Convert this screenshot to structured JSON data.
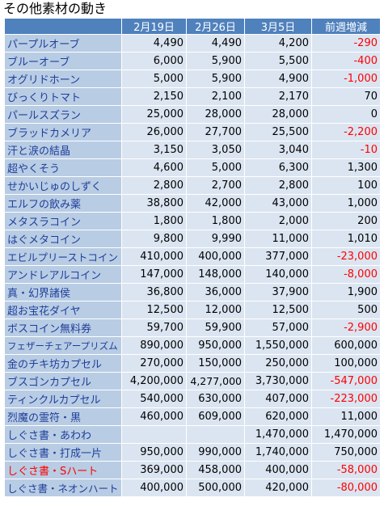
{
  "title": "その他素材の動き",
  "table": {
    "columns": [
      "2月19日",
      "2月26日",
      "3月5日",
      "前週増減"
    ],
    "name_color": "#1f3f9a",
    "negative_color": "#ff0000",
    "rows": [
      {
        "name": "パープルオーブ",
        "cells": [
          "4,490",
          "4,490",
          "4,200",
          "-290"
        ]
      },
      {
        "name": "ブルーオーブ",
        "cells": [
          "6,000",
          "5,900",
          "5,500",
          "-400"
        ]
      },
      {
        "name": "オグリドホーン",
        "cells": [
          "5,000",
          "5,900",
          "4,900",
          "-1,000"
        ]
      },
      {
        "name": "びっくりトマト",
        "cells": [
          "2,150",
          "2,100",
          "2,170",
          "70"
        ]
      },
      {
        "name": "パールスズラン",
        "cells": [
          "25,000",
          "28,000",
          "28,000",
          "0"
        ]
      },
      {
        "name": "ブラッドカメリア",
        "cells": [
          "26,000",
          "27,700",
          "25,500",
          "-2,200"
        ]
      },
      {
        "name": "汗と涙の結晶",
        "cells": [
          "3,150",
          "3,050",
          "3,040",
          "-10"
        ]
      },
      {
        "name": "超やくそう",
        "cells": [
          "4,600",
          "5,000",
          "6,300",
          "1,300"
        ]
      },
      {
        "name": "せかいじゅのしずく",
        "cells": [
          "2,800",
          "2,700",
          "2,800",
          "100"
        ]
      },
      {
        "name": "エルフの飲み薬",
        "cells": [
          "38,800",
          "42,000",
          "43,000",
          "1,000"
        ]
      },
      {
        "name": "メタスラコイン",
        "cells": [
          "1,800",
          "1,800",
          "2,000",
          "200"
        ]
      },
      {
        "name": "はぐメタコイン",
        "cells": [
          "9,800",
          "9,990",
          "11,000",
          "1,010"
        ]
      },
      {
        "name": "エビルプリーストコイン",
        "cells": [
          "410,000",
          "400,000",
          "377,000",
          "-23,000"
        ]
      },
      {
        "name": "アンドレアルコイン",
        "cells": [
          "147,000",
          "148,000",
          "140,000",
          "-8,000"
        ]
      },
      {
        "name": "真・幻界諸侯",
        "cells": [
          "36,800",
          "36,000",
          "37,900",
          "1,900"
        ]
      },
      {
        "name": "超お宝花ダイヤ",
        "cells": [
          "12,500",
          "12,000",
          "12,500",
          "500"
        ]
      },
      {
        "name": "ボスコイン無料券",
        "cells": [
          "59,700",
          "59,900",
          "57,000",
          "-2,900"
        ]
      },
      {
        "name": "フェザーチェアープリズム",
        "cells": [
          "890,000",
          "950,000",
          "1,550,000",
          "600,000"
        ]
      },
      {
        "name": "金のチキ坊カプセル",
        "cells": [
          "270,000",
          "150,000",
          "250,000",
          "100,000"
        ]
      },
      {
        "name": "ブスゴンカプセル",
        "cells": [
          "4,200,000",
          "4,277,000",
          "3,730,000",
          "-547,000"
        ]
      },
      {
        "name": "ティンクルカプセル",
        "cells": [
          "540,000",
          "630,000",
          "407,000",
          "-223,000"
        ]
      },
      {
        "name": "烈魔の霊符・黒",
        "cells": [
          "460,000",
          "609,000",
          "620,000",
          "11,000"
        ]
      },
      {
        "name": "しぐさ書・あわわ",
        "cells": [
          null,
          null,
          "1,470,000",
          "1,470,000"
        ]
      },
      {
        "name": "しぐさ書・打成一片",
        "cells": [
          "950,000",
          "990,000",
          "1,740,000",
          "750,000"
        ]
      },
      {
        "name": "しぐさ書・Sハート",
        "color": "#ff0000",
        "cells": [
          "369,000",
          "458,000",
          "400,000",
          "-58,000"
        ]
      },
      {
        "name": "しぐさ書・ネオンハート",
        "cells": [
          "400,000",
          "500,000",
          "420,000",
          "-80,000"
        ]
      }
    ]
  }
}
